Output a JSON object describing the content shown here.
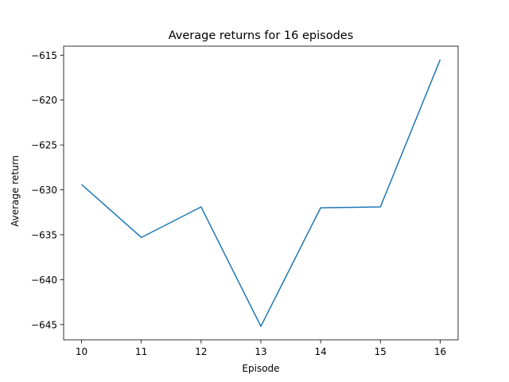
{
  "chart_data": {
    "type": "line",
    "title": "Average returns for 16 episodes",
    "xlabel": "Episode",
    "ylabel": "Average return",
    "x": [
      10,
      11,
      12,
      13,
      14,
      15,
      16
    ],
    "series": [
      {
        "values": [
          -629.4,
          -635.3,
          -631.9,
          -645.2,
          -632.0,
          -631.9,
          -615.5
        ]
      }
    ],
    "xticks": [
      10,
      11,
      12,
      13,
      14,
      15,
      16
    ],
    "yticks": [
      -645,
      -640,
      -635,
      -630,
      -625,
      -620,
      -615
    ],
    "xlim": [
      9.7,
      16.3
    ],
    "ylim": [
      -646.7,
      -614.0
    ],
    "grid": false,
    "colors": {
      "line": "#1f77b4"
    }
  }
}
